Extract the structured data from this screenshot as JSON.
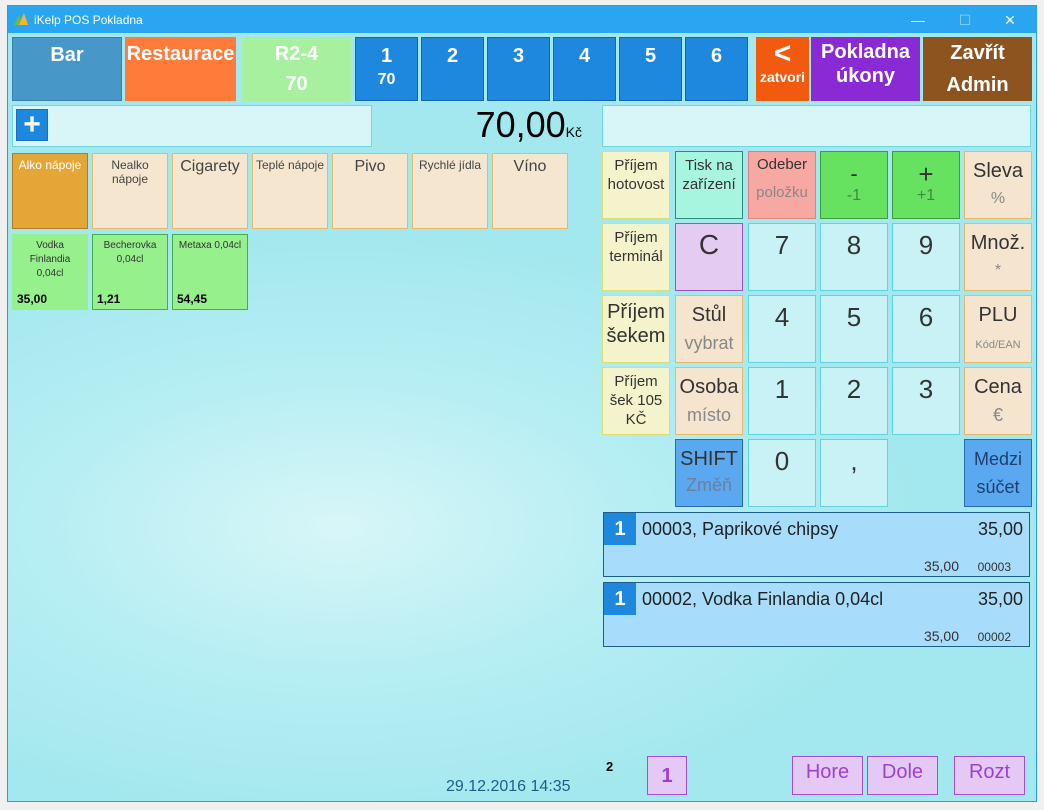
{
  "window": {
    "title": "iKelp POS Pokladna",
    "minimize": "—",
    "maximize": "☐",
    "close": "✕"
  },
  "top": {
    "bar": "Bar",
    "restaurace": "Restaurace",
    "table": "R2-4",
    "table_total": "70",
    "tabs": [
      {
        "label": "1",
        "sub": "70"
      },
      {
        "label": "2"
      },
      {
        "label": "3"
      },
      {
        "label": "4"
      },
      {
        "label": "5"
      },
      {
        "label": "6"
      }
    ],
    "back": "<",
    "back_sub": "zatvori",
    "pokladna1": "Pokladna",
    "pokladna2": "úkony",
    "close1": "Zavřít",
    "close2": "Admin"
  },
  "search": {
    "add": "+",
    "value": ""
  },
  "total": {
    "amount": "70,00",
    "currency": "Kč"
  },
  "entry": {
    "value": ""
  },
  "categories": [
    "Alko nápoje",
    "Nealko nápoje",
    "Cigarety",
    "Teplé nápoje",
    "Pivo",
    "Rychlé jídla",
    "Víno"
  ],
  "products": [
    {
      "name": "Vodka Finlandia 0,04cl",
      "price": "35,00"
    },
    {
      "name": "Becherovka 0,04cl",
      "price": "1,21"
    },
    {
      "name": "Metaxa 0,04cl",
      "price": "54,45"
    }
  ],
  "keypad": {
    "prijem_hotovost": "Příjem hotovost",
    "tisk": "Tisk na zařízení",
    "odeber": "Odeber",
    "odeber_sub": "položku",
    "minus": "-",
    "minus_sub": "-1",
    "plus": "+",
    "plus_sub": "+1",
    "sleva": "Sleva",
    "sleva_sub": "%",
    "prijem_terminal": "Příjem terminál",
    "clear": "C",
    "k7": "7",
    "k8": "8",
    "k9": "9",
    "mnoz": "Množ.",
    "mnoz_sub": "*",
    "prijem_sekem": "Příjem šekem",
    "stul": "Stůl",
    "stul_sub": "vybrat",
    "k4": "4",
    "k5": "5",
    "k6": "6",
    "plu": "PLU",
    "plu_sub": "Kód/EAN",
    "prijem_sek105": "Příjem šek 105 KČ",
    "osoba": "Osoba",
    "osoba_sub": "místo",
    "k1": "1",
    "k2": "2",
    "k3": "3",
    "cena": "Cena",
    "cena_sub": "€",
    "shift": "SHIFT",
    "shift_sub": "Změň",
    "k0": "0",
    "comma": ",",
    "medzi": "Medzi",
    "medzi_sub": "súčet"
  },
  "receipt": [
    {
      "qty": "1",
      "name": "00003, Paprikové chipsy",
      "price": "35,00",
      "unit": "35,00",
      "code": "00003"
    },
    {
      "qty": "1",
      "name": "00002, Vodka Finlandia 0,04cl",
      "price": "35,00",
      "unit": "35,00",
      "code": "00002"
    }
  ],
  "footer": {
    "datetime": "29.12.2016 14:35",
    "count": "2",
    "page": "1",
    "up": "Hore",
    "down": "Dole",
    "split": "Rozt"
  },
  "colors": {
    "title": "#2aa5f0",
    "tab": "#1e88de",
    "bar": "#4797c8",
    "restaurace": "#ff7b3a",
    "table": "#a7f0a0",
    "back": "#f25a10",
    "pokladna": "#8a2ad4",
    "close": "#8e5420"
  }
}
